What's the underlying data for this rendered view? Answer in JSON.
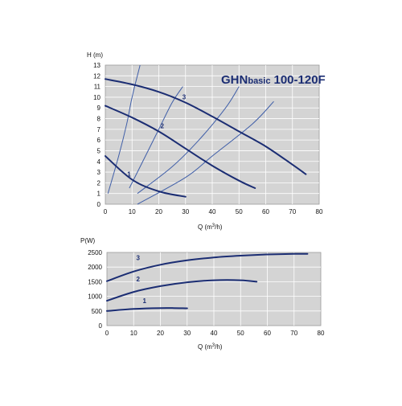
{
  "colors": {
    "plot_bg": "#d4d4d4",
    "grid": "#ffffff",
    "curve": "#1b2d73",
    "efficiency_curve": "#3f5ea8",
    "frame": "#9a9a9a"
  },
  "chart_data": [
    {
      "type": "line",
      "title_main": "GHN",
      "title_sub": "basic",
      "title_model": "100-120F",
      "ylabel": "H (m)",
      "xlabel_prefix": "Q (m",
      "xlabel_sup": "3",
      "xlabel_suffix": "/h)",
      "xlim": [
        0,
        80
      ],
      "ylim": [
        0,
        13
      ],
      "xticks": [
        "0",
        "10",
        "20",
        "30",
        "40",
        "50",
        "60",
        "70",
        "80"
      ],
      "yticks": [
        "0",
        "1",
        "2",
        "3",
        "4",
        "5",
        "6",
        "7",
        "8",
        "9",
        "10",
        "11",
        "12",
        "13"
      ],
      "grid": true,
      "series": [
        {
          "label": "1",
          "x": [
            0,
            10,
            20,
            30
          ],
          "y": [
            4.5,
            2.3,
            1.2,
            0.7
          ]
        },
        {
          "label": "2",
          "x": [
            0,
            10,
            20,
            30,
            40,
            50,
            56
          ],
          "y": [
            9.2,
            8.1,
            6.8,
            5.2,
            3.6,
            2.2,
            1.5
          ]
        },
        {
          "label": "3",
          "x": [
            0,
            10,
            20,
            30,
            40,
            50,
            60,
            70,
            75
          ],
          "y": [
            11.7,
            11.2,
            10.5,
            9.5,
            8.2,
            6.8,
            5.4,
            3.7,
            2.8
          ]
        }
      ],
      "efficiency_lines": [
        {
          "x": [
            1,
            5,
            8,
            10,
            13
          ],
          "y": [
            1.0,
            4.5,
            7.5,
            10.0,
            13.0
          ]
        },
        {
          "x": [
            9,
            15,
            20,
            25,
            29
          ],
          "y": [
            1.5,
            4.5,
            7.0,
            9.5,
            11.0
          ]
        },
        {
          "x": [
            12,
            25,
            35,
            45,
            50
          ],
          "y": [
            1.0,
            3.5,
            6.0,
            9.0,
            11.0
          ]
        },
        {
          "x": [
            12,
            30,
            40,
            55,
            63
          ],
          "y": [
            0.0,
            2.5,
            4.5,
            7.5,
            9.6
          ]
        }
      ]
    },
    {
      "type": "line",
      "ylabel": "P(W)",
      "xlabel_prefix": "Q (m",
      "xlabel_sup": "3",
      "xlabel_suffix": "/h)",
      "xlim": [
        0,
        80
      ],
      "ylim": [
        0,
        2500
      ],
      "xticks": [
        "0",
        "10",
        "20",
        "30",
        "40",
        "50",
        "60",
        "70",
        "80"
      ],
      "yticks": [
        "0",
        "500",
        "1000",
        "1500",
        "2000",
        "2500"
      ],
      "grid": true,
      "series": [
        {
          "label": "1",
          "x": [
            0,
            10,
            20,
            25,
            30
          ],
          "y": [
            500,
            570,
            600,
            600,
            590
          ]
        },
        {
          "label": "2",
          "x": [
            0,
            10,
            20,
            30,
            40,
            50,
            56
          ],
          "y": [
            850,
            1150,
            1350,
            1480,
            1550,
            1550,
            1500
          ]
        },
        {
          "label": "3",
          "x": [
            0,
            10,
            20,
            30,
            40,
            50,
            60,
            70,
            75
          ],
          "y": [
            1520,
            1850,
            2080,
            2230,
            2330,
            2390,
            2430,
            2450,
            2450
          ]
        }
      ]
    }
  ]
}
